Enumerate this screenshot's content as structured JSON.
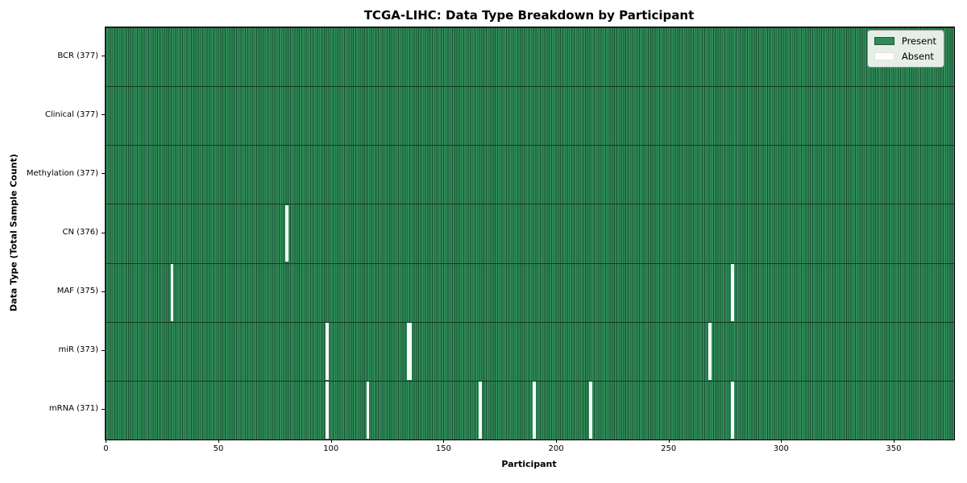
{
  "chart_data": {
    "type": "heatmap",
    "title": "TCGA-LIHC: Data Type Breakdown by Participant",
    "xlabel": "Participant",
    "ylabel": "Data Type (Total Sample Count)",
    "x_ticks": [
      0,
      50,
      100,
      150,
      200,
      250,
      300,
      350
    ],
    "xlim": [
      -0.5,
      376.5
    ],
    "total_participants": 377,
    "grid": false,
    "legend_position": "upper right",
    "legend_items": [
      {
        "label": "Present",
        "color": "#2e8b57"
      },
      {
        "label": "Absent",
        "color": "#ffffff"
      }
    ],
    "colors": {
      "present": "#2e8b57",
      "absent": "#ffffff",
      "cell_edge": "#1d5134",
      "background": "#ffffff"
    },
    "rows": [
      {
        "data_type": "BCR",
        "label": "BCR (377)",
        "present_count": 377,
        "absent_participants": []
      },
      {
        "data_type": "Clinical",
        "label": "Clinical (377)",
        "present_count": 377,
        "absent_participants": []
      },
      {
        "data_type": "Methylation",
        "label": "Methylation (377)",
        "present_count": 377,
        "absent_participants": []
      },
      {
        "data_type": "CN",
        "label": "CN (376)",
        "present_count": 376,
        "absent_participants": [
          80
        ]
      },
      {
        "data_type": "MAF",
        "label": "MAF (375)",
        "present_count": 375,
        "absent_participants": [
          29,
          278
        ]
      },
      {
        "data_type": "miR",
        "label": "miR (373)",
        "present_count": 373,
        "absent_participants": [
          98,
          134,
          135,
          268
        ]
      },
      {
        "data_type": "mRNA",
        "label": "mRNA (371)",
        "present_count": 371,
        "absent_participants": [
          98,
          116,
          166,
          190,
          215,
          278
        ]
      }
    ]
  }
}
